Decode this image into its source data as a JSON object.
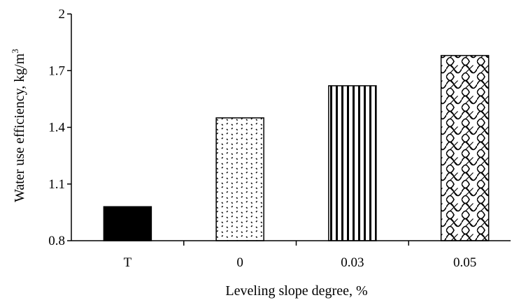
{
  "chart_data": {
    "type": "bar",
    "categories": [
      "T",
      "0",
      "0.03",
      "0.05"
    ],
    "values": [
      0.98,
      1.45,
      1.62,
      1.78
    ],
    "xlabel": "Leveling slope degree, %",
    "ylabel_main": "Water use efficiency, kg/m",
    "ylabel_sup": "3",
    "ylim": [
      0.8,
      2.0
    ],
    "yticks": [
      0.8,
      1.1,
      1.4,
      1.7,
      2.0
    ],
    "ytick_labels": [
      "0.8",
      "1.1",
      "1.4",
      "1.7",
      "2"
    ],
    "grid": false,
    "legend": "none",
    "bar_fills": [
      "solid-black",
      "dots",
      "vertical-stripes",
      "chain-lattice"
    ],
    "colors": {
      "ink": "#000000",
      "background": "#ffffff"
    }
  }
}
